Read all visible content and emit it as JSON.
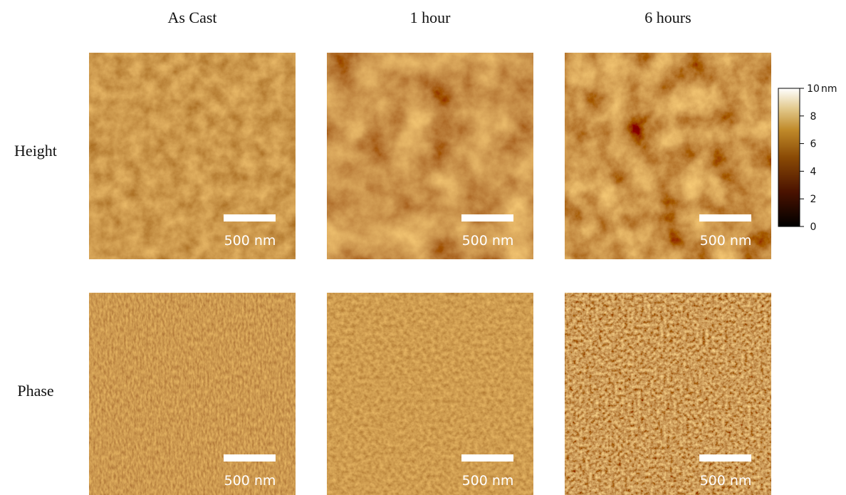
{
  "column_headers": [
    "As Cast",
    "1 hour",
    "6 hours"
  ],
  "row_labels": [
    "Height",
    "Phase"
  ],
  "scale_bars": [
    [
      "500 nm",
      "500 nm",
      "500 nm"
    ],
    [
      "500 nm",
      "500 nm",
      "500 nm"
    ]
  ],
  "colorbar": {
    "range": [
      0,
      10
    ],
    "ticks": [
      0,
      2,
      4,
      6,
      8,
      10
    ],
    "unit": "nm"
  }
}
